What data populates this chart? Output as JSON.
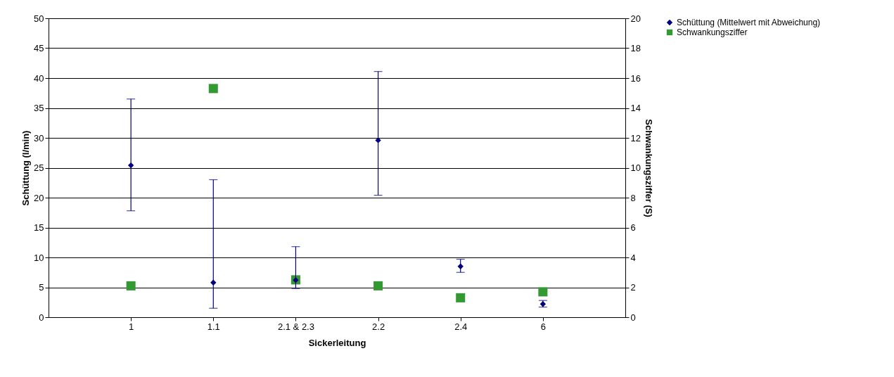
{
  "chart_data": {
    "type": "scatter",
    "xlabel": "Sickerleitung",
    "ylabel": "Schüttung (l/min)",
    "y2label": "Schwankungsziffer (S)",
    "categories": [
      "1",
      "1.1",
      "2.1 & 2.3",
      "2.2",
      "2.4",
      "6"
    ],
    "series": [
      {
        "name": "Schüttung (Mittelwert mit Abweichung)",
        "color": "#000080",
        "marker": "diamond",
        "values": [
          25.4,
          5.8,
          6.2,
          29.6,
          8.5,
          2.2
        ],
        "errors": [
          [
            17.8,
            36.5
          ],
          [
            1.5,
            23.0
          ],
          [
            4.8,
            11.8
          ],
          [
            20.4,
            41.1
          ],
          [
            7.5,
            9.7
          ],
          [
            1.7,
            2.8
          ]
        ]
      },
      {
        "name": "Schwankungsziffer",
        "color": "#339933",
        "marker": "square",
        "axis": "y2",
        "values": [
          2.1,
          15.3,
          2.5,
          2.1,
          1.3,
          1.7
        ]
      }
    ],
    "ylim": [
      0,
      50
    ],
    "yticks": [
      0,
      5,
      10,
      15,
      20,
      25,
      30,
      35,
      40,
      45,
      50
    ],
    "y2lim": [
      0,
      20
    ],
    "y2ticks": [
      0,
      2,
      4,
      6,
      8,
      10,
      12,
      14,
      16,
      18,
      20
    ],
    "grid": "y",
    "legend": "right"
  }
}
